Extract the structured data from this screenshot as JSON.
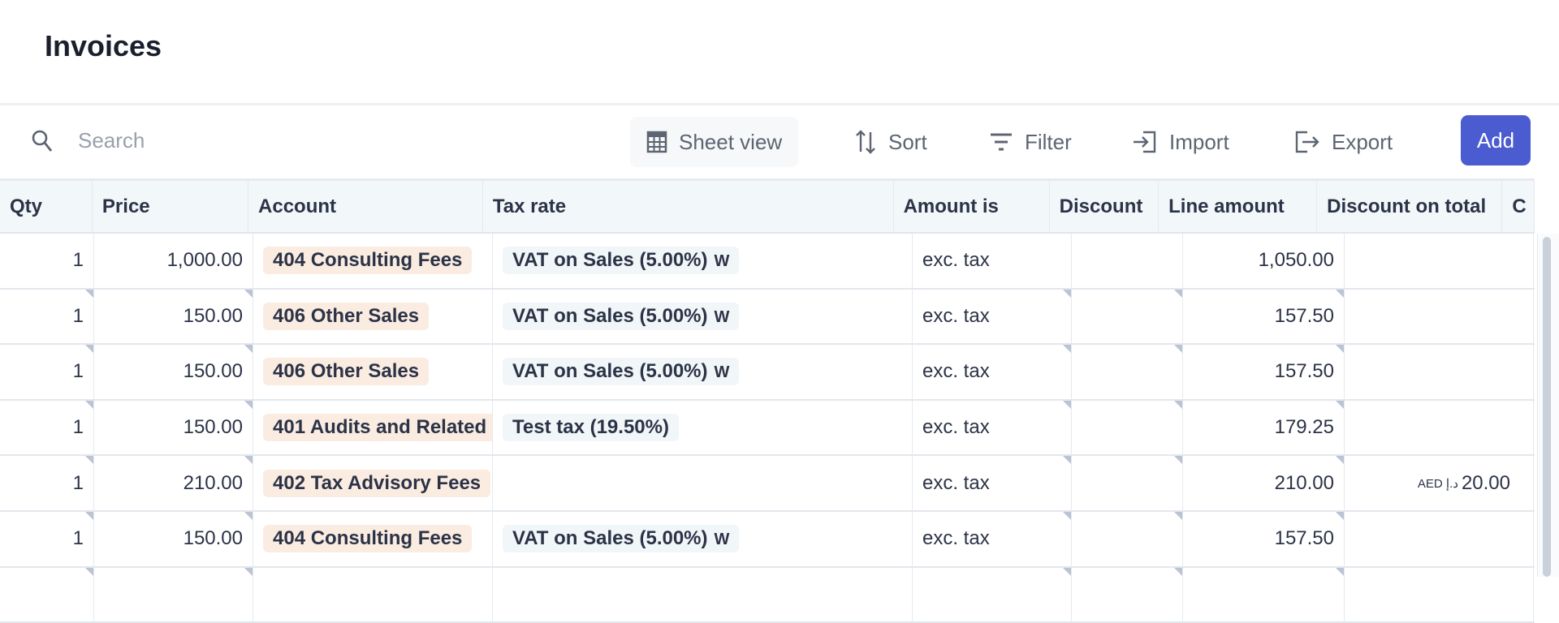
{
  "page": {
    "title": "Invoices"
  },
  "toolbar": {
    "search_placeholder": "Search",
    "sheet_view": "Sheet view",
    "sort": "Sort",
    "filter": "Filter",
    "import": "Import",
    "export": "Export",
    "add": "Add",
    "accent": "#4b5bd0"
  },
  "table": {
    "columns": [
      "Qty",
      "Price",
      "Account",
      "Tax rate",
      "Amount is",
      "Discount",
      "Line amount",
      "Discount on total",
      "C"
    ],
    "rows": [
      {
        "qty": "1",
        "price": "1,000.00",
        "account": "404 Consulting Fees",
        "tax": "VAT on Sales (5.00%)",
        "tax_icon": "w-logo-icon",
        "amount_is": "exc. tax",
        "discount": "",
        "line": "1,050.00",
        "dtotal": "",
        "dcur": ""
      },
      {
        "qty": "1",
        "price": "150.00",
        "account": "406 Other Sales",
        "tax": "VAT on Sales (5.00%)",
        "tax_icon": "w-logo-icon",
        "amount_is": "exc. tax",
        "discount": "",
        "line": "157.50",
        "dtotal": "",
        "dcur": ""
      },
      {
        "qty": "1",
        "price": "150.00",
        "account": "406 Other Sales",
        "tax": "VAT on Sales (5.00%)",
        "tax_icon": "w-logo-icon",
        "amount_is": "exc. tax",
        "discount": "",
        "line": "157.50",
        "dtotal": "",
        "dcur": ""
      },
      {
        "qty": "1",
        "price": "150.00",
        "account": "401 Audits and Related",
        "tax": "Test tax (19.50%)",
        "tax_icon": "",
        "amount_is": "exc. tax",
        "discount": "",
        "line": "179.25",
        "dtotal": "",
        "dcur": ""
      },
      {
        "qty": "1",
        "price": "210.00",
        "account": "402 Tax Advisory Fees",
        "tax": "",
        "tax_icon": "",
        "amount_is": "exc. tax",
        "discount": "",
        "line": "210.00",
        "dtotal": "20.00",
        "dcur": "AED د.إ"
      },
      {
        "qty": "1",
        "price": "150.00",
        "account": "404 Consulting Fees",
        "tax": "VAT on Sales (5.00%)",
        "tax_icon": "w-logo-icon",
        "amount_is": "exc. tax",
        "discount": "",
        "line": "157.50",
        "dtotal": "",
        "dcur": ""
      }
    ]
  }
}
